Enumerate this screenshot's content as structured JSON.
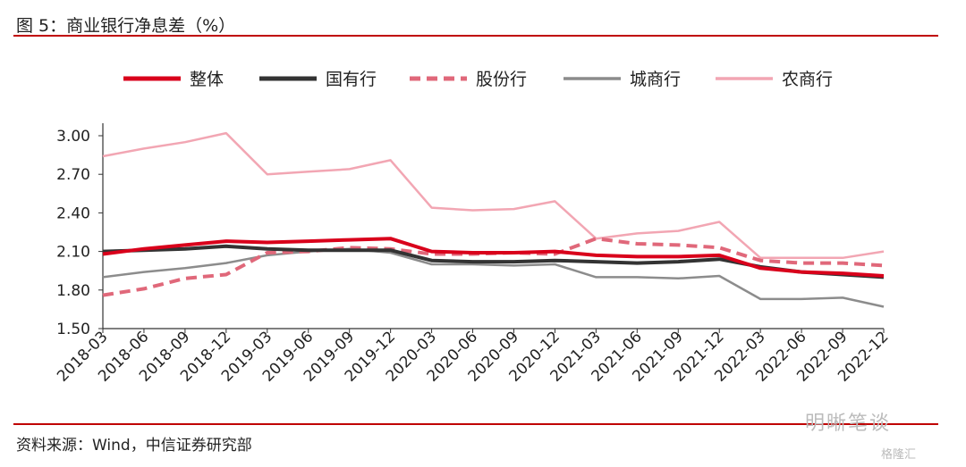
{
  "header": {
    "title": "图 5：商业银行净息差（%）"
  },
  "footer": {
    "source": "资料来源：Wind，中信证券研究部"
  },
  "watermark": {
    "main": "明晰笔谈",
    "sub": "格隆汇"
  },
  "chart_data": {
    "type": "line",
    "title": "图 5：商业银行净息差（%）",
    "ylim": [
      1.5,
      3.0
    ],
    "yticks": [
      "3.00",
      "2.70",
      "2.40",
      "2.10",
      "1.80",
      "1.50"
    ],
    "legend_position": "top",
    "categories": [
      "2018-03",
      "2018-06",
      "2018-09",
      "2018-12",
      "2019-03",
      "2019-06",
      "2019-09",
      "2019-12",
      "2020-03",
      "2020-06",
      "2020-09",
      "2020-12",
      "2021-03",
      "2021-06",
      "2021-09",
      "2021-12",
      "2022-03",
      "2022-06",
      "2022-09",
      "2022-12"
    ],
    "series": [
      {
        "name": "整体",
        "color": "#d9001b",
        "style": "solid-thick",
        "values": [
          2.08,
          2.12,
          2.15,
          2.18,
          2.17,
          2.18,
          2.19,
          2.2,
          2.1,
          2.09,
          2.09,
          2.1,
          2.07,
          2.06,
          2.06,
          2.07,
          1.97,
          1.94,
          1.93,
          1.91
        ]
      },
      {
        "name": "国有行",
        "color": "#333333",
        "style": "solid-thick",
        "values": [
          2.1,
          2.11,
          2.12,
          2.14,
          2.12,
          2.11,
          2.11,
          2.11,
          2.03,
          2.02,
          2.02,
          2.03,
          2.02,
          2.01,
          2.02,
          2.04,
          1.98,
          1.94,
          1.92,
          1.9
        ]
      },
      {
        "name": "股份行",
        "color": "#e0687a",
        "style": "dashed",
        "values": [
          1.76,
          1.81,
          1.89,
          1.92,
          2.09,
          2.1,
          2.13,
          2.12,
          2.08,
          2.08,
          2.09,
          2.08,
          2.2,
          2.16,
          2.15,
          2.13,
          2.03,
          2.01,
          2.01,
          1.99
        ]
      },
      {
        "name": "城商行",
        "color": "#8c8c8c",
        "style": "solid-thin",
        "values": [
          1.9,
          1.94,
          1.97,
          2.01,
          2.07,
          2.1,
          2.12,
          2.09,
          2.0,
          2.0,
          1.99,
          2.0,
          1.9,
          1.9,
          1.89,
          1.91,
          1.73,
          1.73,
          1.74,
          1.67
        ]
      },
      {
        "name": "农商行",
        "color": "#f2a6b3",
        "style": "solid-thin",
        "values": [
          2.84,
          2.9,
          2.95,
          3.02,
          2.7,
          2.72,
          2.74,
          2.81,
          2.44,
          2.42,
          2.43,
          2.49,
          2.2,
          2.24,
          2.26,
          2.33,
          2.05,
          2.05,
          2.05,
          2.1
        ]
      }
    ]
  }
}
